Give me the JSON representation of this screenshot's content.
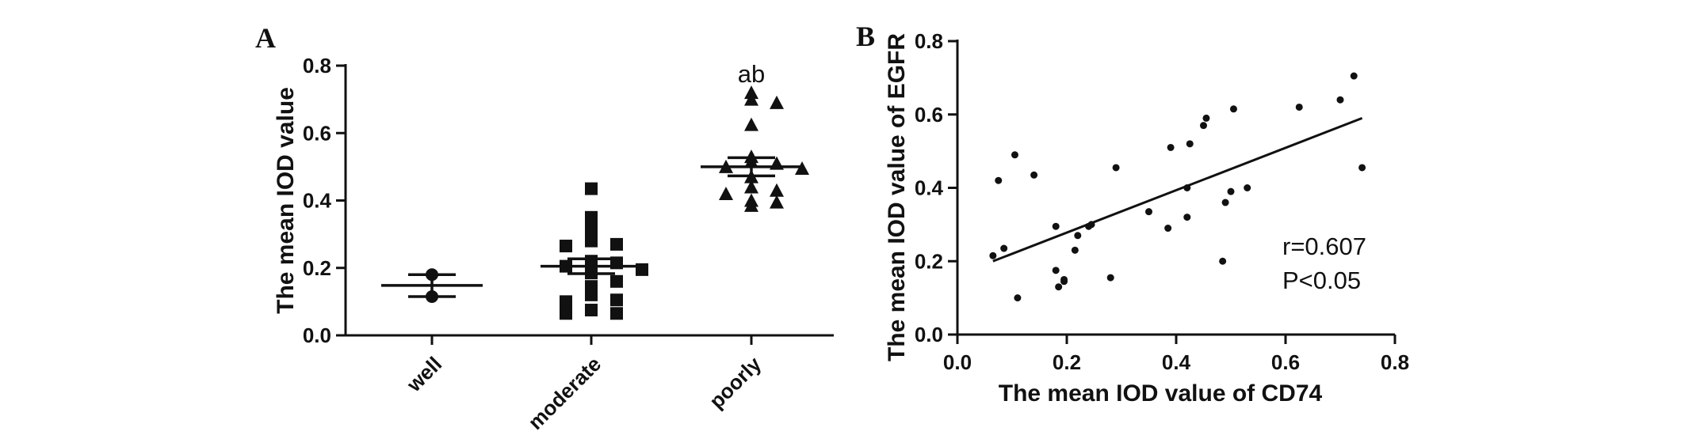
{
  "colors": {
    "ink": "#111111",
    "background": "#ffffff"
  },
  "chart_data": [
    {
      "panel": "A",
      "type": "scatter",
      "subtype": "dot plot with mean and SEM",
      "categories": [
        "well",
        "moderate",
        "poorly"
      ],
      "markers": [
        "circle",
        "square",
        "triangle-up"
      ],
      "ylabel": "The mean IOD value",
      "xlabel": "",
      "ylim": [
        0,
        0.8
      ],
      "yticks": [
        "0.0",
        "0.2",
        "0.4",
        "0.6",
        "0.8"
      ],
      "series": [
        {
          "category": "well",
          "values": [
            0.18,
            0.115
          ],
          "mean": 0.148,
          "sem_upper": 0.18,
          "sem_lower": 0.115
        },
        {
          "category": "moderate",
          "values": [
            0.435,
            0.35,
            0.315,
            0.28,
            0.27,
            0.265,
            0.22,
            0.215,
            0.205,
            0.195,
            0.185,
            0.16,
            0.145,
            0.12,
            0.105,
            0.1,
            0.075,
            0.065,
            0.065
          ],
          "mean": 0.205,
          "sem_upper": 0.227,
          "sem_lower": 0.183
        },
        {
          "category": "poorly",
          "values": [
            0.72,
            0.7,
            0.69,
            0.625,
            0.53,
            0.515,
            0.51,
            0.5,
            0.495,
            0.47,
            0.44,
            0.43,
            0.42,
            0.4,
            0.395,
            0.385
          ],
          "mean": 0.5,
          "sem_upper": 0.527,
          "sem_lower": 0.473
        }
      ],
      "annotations": [
        {
          "category": "poorly",
          "text": "ab"
        }
      ]
    },
    {
      "panel": "B",
      "type": "scatter",
      "xlabel": "The mean IOD value of CD74",
      "ylabel": "The mean IOD value of EGFR",
      "xlim": [
        0.0,
        0.8
      ],
      "ylim": [
        0.0,
        0.8
      ],
      "xticks": [
        "0.0",
        "0.2",
        "0.4",
        "0.6",
        "0.8"
      ],
      "yticks": [
        "0.0",
        "0.2",
        "0.4",
        "0.6",
        "0.8"
      ],
      "points": [
        [
          0.065,
          0.215
        ],
        [
          0.075,
          0.42
        ],
        [
          0.085,
          0.235
        ],
        [
          0.105,
          0.49
        ],
        [
          0.11,
          0.1
        ],
        [
          0.14,
          0.435
        ],
        [
          0.18,
          0.295
        ],
        [
          0.18,
          0.175
        ],
        [
          0.185,
          0.13
        ],
        [
          0.195,
          0.145
        ],
        [
          0.195,
          0.15
        ],
        [
          0.215,
          0.23
        ],
        [
          0.22,
          0.27
        ],
        [
          0.24,
          0.295
        ],
        [
          0.245,
          0.3
        ],
        [
          0.28,
          0.155
        ],
        [
          0.29,
          0.455
        ],
        [
          0.35,
          0.335
        ],
        [
          0.385,
          0.29
        ],
        [
          0.39,
          0.51
        ],
        [
          0.42,
          0.4
        ],
        [
          0.42,
          0.32
        ],
        [
          0.425,
          0.52
        ],
        [
          0.45,
          0.57
        ],
        [
          0.455,
          0.59
        ],
        [
          0.485,
          0.2
        ],
        [
          0.49,
          0.36
        ],
        [
          0.5,
          0.39
        ],
        [
          0.505,
          0.615
        ],
        [
          0.53,
          0.4
        ],
        [
          0.625,
          0.62
        ],
        [
          0.7,
          0.64
        ],
        [
          0.725,
          0.705
        ],
        [
          0.74,
          0.455
        ]
      ],
      "fit_line": {
        "x": [
          0.065,
          0.74
        ],
        "y": [
          0.2,
          0.59
        ]
      },
      "annotation": {
        "r_text": "r=0.607",
        "p_text": "P<0.05"
      }
    }
  ]
}
